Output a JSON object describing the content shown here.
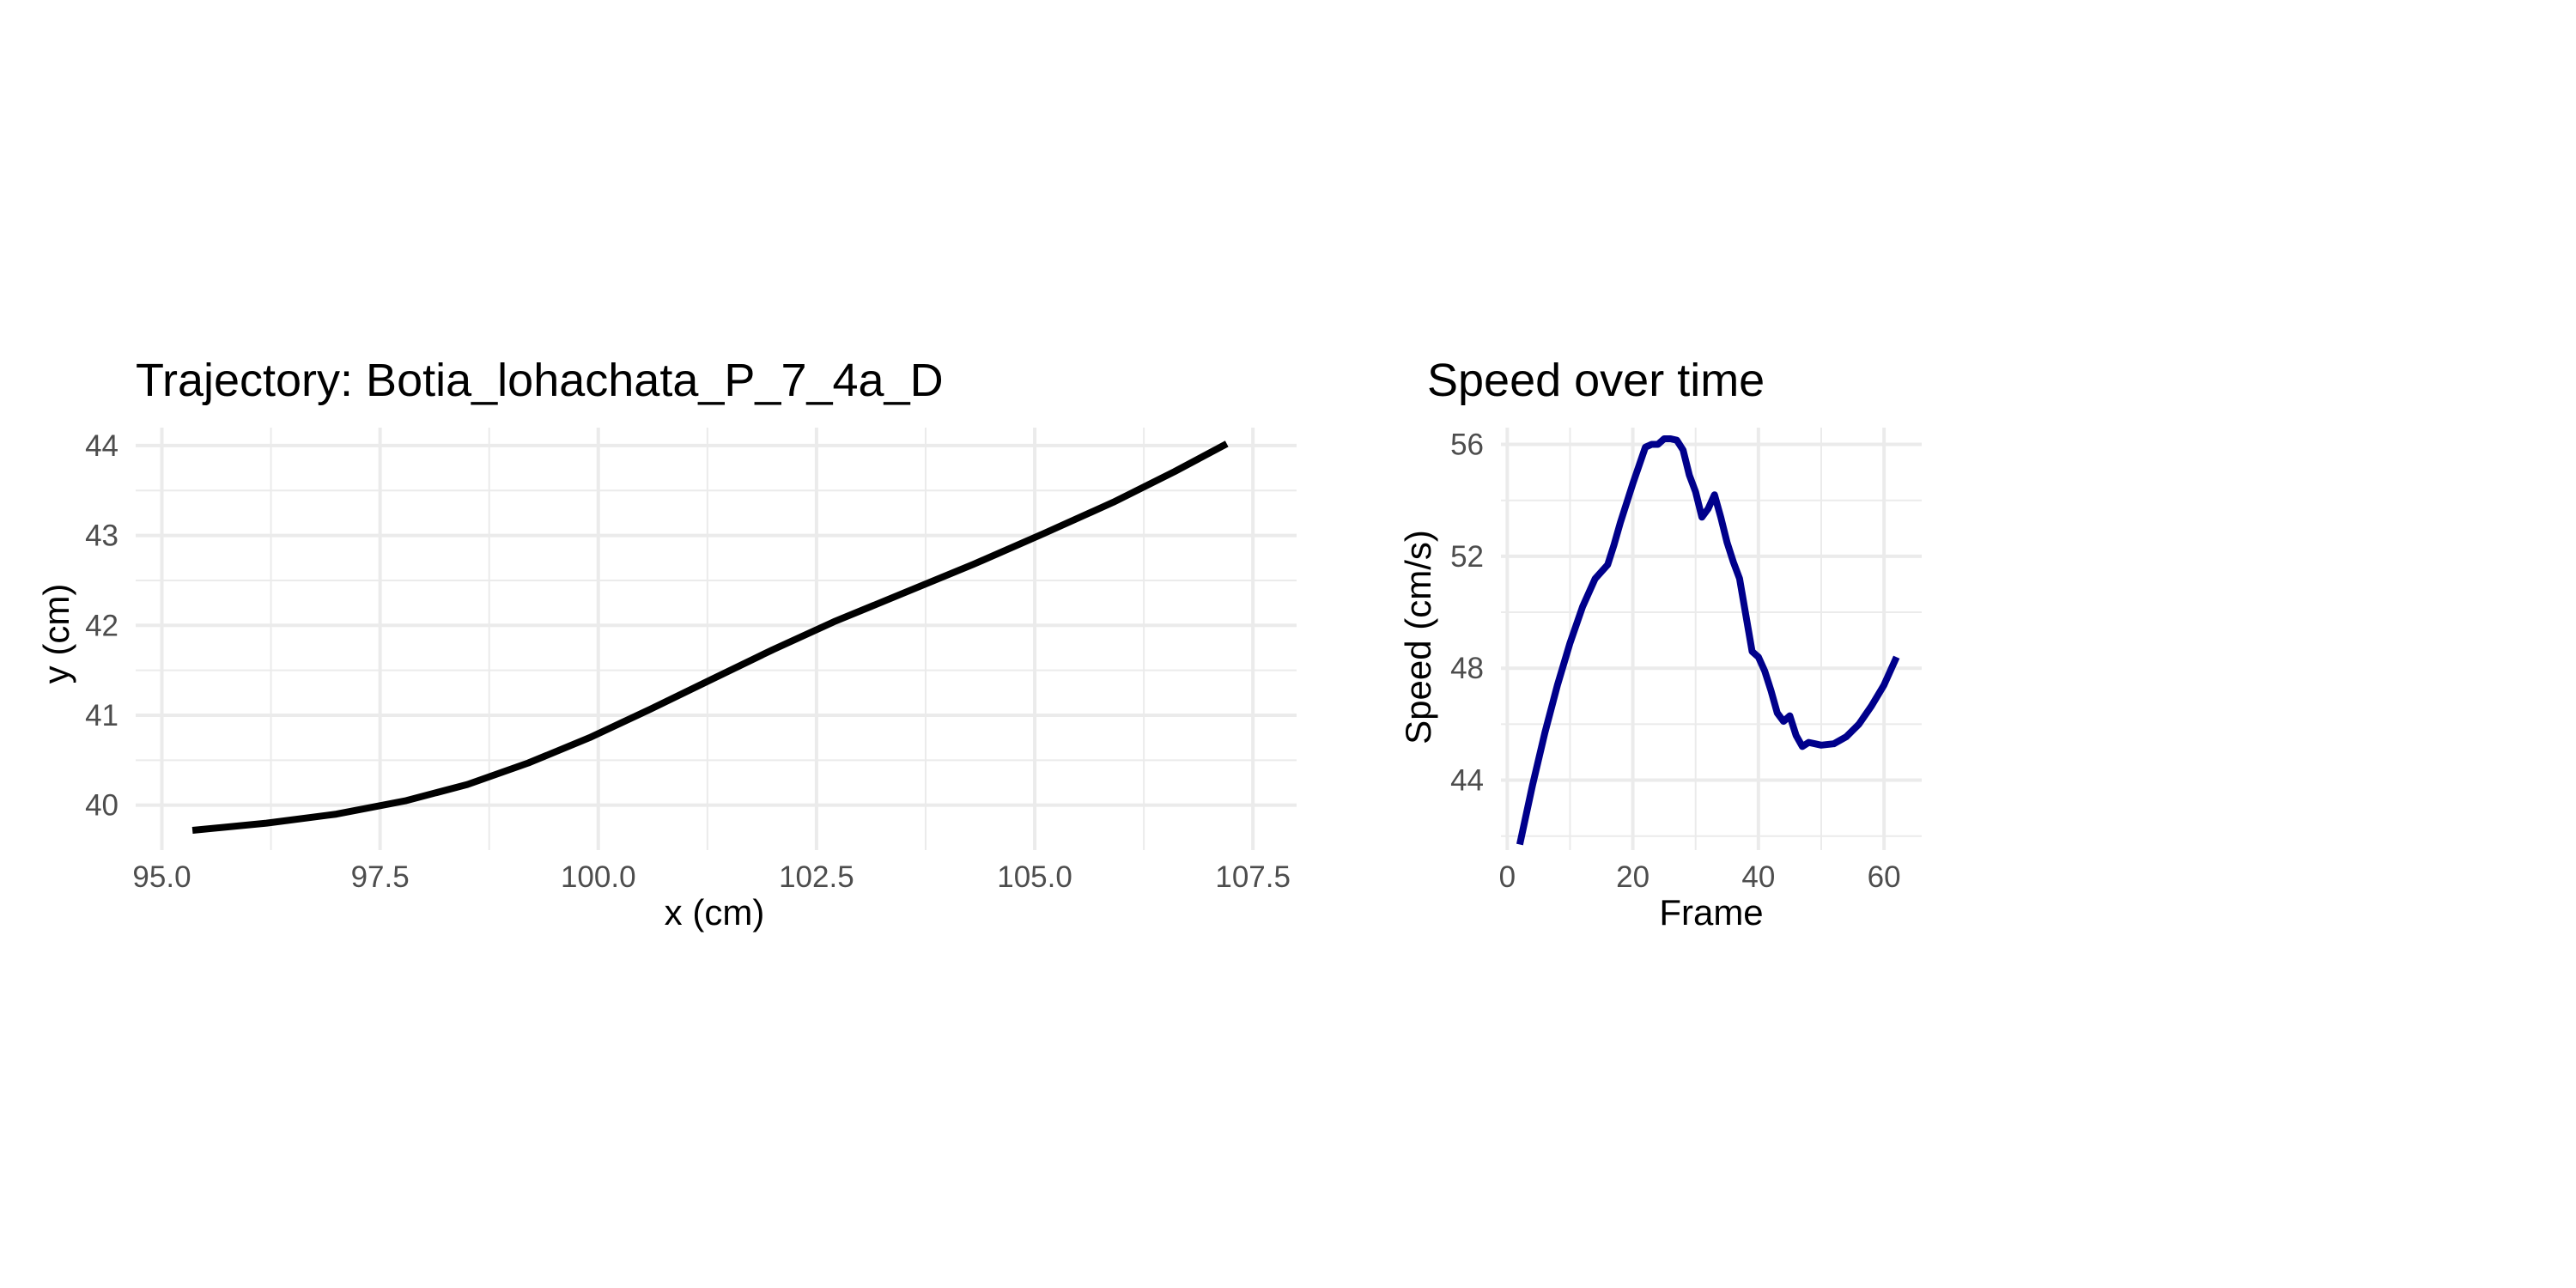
{
  "chart_data": [
    {
      "type": "line",
      "title": "Trajectory: Botia_lohachata_P_7_4a_D",
      "xlabel": "x (cm)",
      "ylabel": "y (cm)",
      "xlim": [
        94.7,
        108.0
      ],
      "ylim": [
        39.5,
        44.2
      ],
      "xticks": [
        95.0,
        97.5,
        100.0,
        102.5,
        105.0,
        107.5
      ],
      "xtick_labels": [
        "95.0",
        "97.5",
        "100.0",
        "102.5",
        "105.0",
        "107.5"
      ],
      "yticks": [
        40,
        41,
        42,
        43,
        44
      ],
      "ytick_labels": [
        "40",
        "41",
        "42",
        "43",
        "44"
      ],
      "grid": true,
      "color": "#000000",
      "series": [
        {
          "x": [
            95.35,
            96.2,
            97.0,
            97.8,
            98.5,
            99.2,
            99.9,
            100.6,
            101.3,
            102.0,
            102.7,
            103.5,
            104.3,
            105.1,
            105.9,
            106.6,
            107.2
          ],
          "y": [
            39.72,
            39.8,
            39.9,
            40.05,
            40.23,
            40.47,
            40.75,
            41.07,
            41.4,
            41.73,
            42.04,
            42.36,
            42.68,
            43.02,
            43.37,
            43.71,
            44.02
          ]
        }
      ]
    },
    {
      "type": "line",
      "title": "Speed over time",
      "xlabel": "Frame",
      "ylabel": "Speed (cm/s)",
      "xlim": [
        -1,
        66
      ],
      "ylim": [
        41.5,
        56.6
      ],
      "xticks": [
        0,
        20,
        40,
        60
      ],
      "xtick_labels": [
        "0",
        "20",
        "40",
        "60"
      ],
      "yticks": [
        44,
        48,
        52,
        56
      ],
      "ytick_labels": [
        "44",
        "48",
        "52",
        "56"
      ],
      "grid": true,
      "color": "#00008b",
      "series": [
        {
          "x": [
            2,
            4,
            6,
            8,
            10,
            12,
            14,
            16,
            17,
            18,
            20,
            22,
            23,
            24,
            25,
            26,
            27,
            28,
            29,
            30,
            31,
            32,
            33,
            34,
            35,
            36,
            37,
            38,
            39,
            40,
            41,
            42,
            43,
            44,
            45,
            46,
            47,
            48,
            49,
            50,
            52,
            54,
            56,
            58,
            60,
            62
          ],
          "y": [
            41.7,
            43.8,
            45.7,
            47.4,
            48.9,
            50.2,
            51.2,
            51.7,
            52.4,
            53.2,
            54.6,
            55.9,
            56.0,
            56.0,
            56.2,
            56.2,
            56.15,
            55.8,
            54.9,
            54.3,
            53.4,
            53.7,
            54.2,
            53.4,
            52.5,
            51.8,
            51.2,
            49.9,
            48.6,
            48.4,
            47.9,
            47.2,
            46.4,
            46.1,
            46.3,
            45.6,
            45.2,
            45.35,
            45.3,
            45.25,
            45.3,
            45.55,
            46.0,
            46.65,
            47.4,
            48.4
          ]
        }
      ]
    }
  ]
}
